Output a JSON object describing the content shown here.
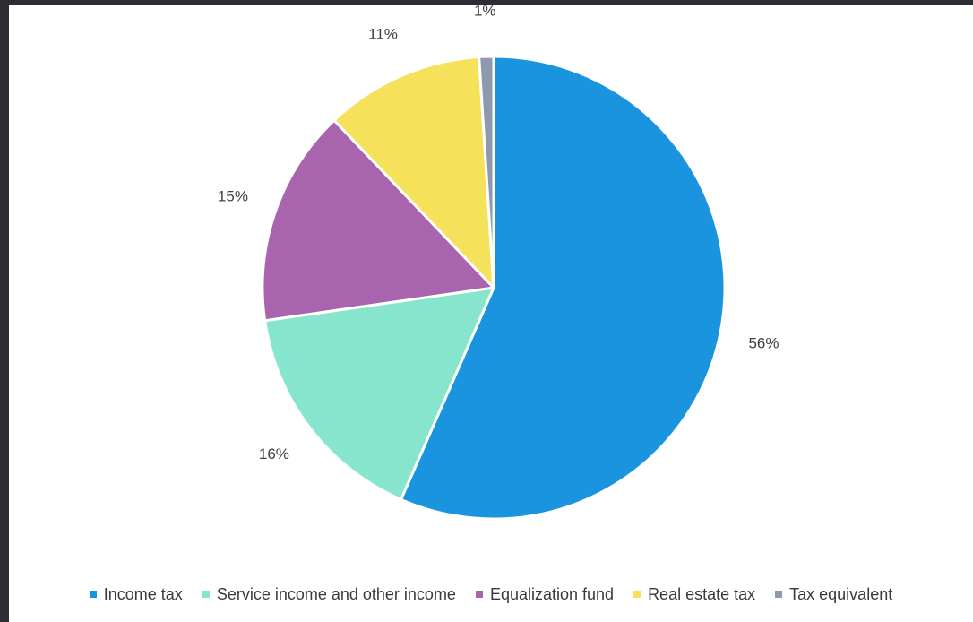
{
  "chart_data": {
    "type": "pie",
    "title": "",
    "start_angle_deg": 0,
    "direction": "clockwise",
    "legend_position": "bottom",
    "slices": [
      {
        "name": "Income tax",
        "value": 56,
        "label": "56%",
        "color": "#1a94df"
      },
      {
        "name": "Service income and other income",
        "value": 16,
        "label": "16%",
        "color": "#88e5cd"
      },
      {
        "name": "Equalization fund",
        "value": 15,
        "label": "15%",
        "color": "#a864ad"
      },
      {
        "name": "Real estate tax",
        "value": 11,
        "label": "11%",
        "color": "#f5e15a"
      },
      {
        "name": "Tax equivalent",
        "value": 1,
        "label": "1%",
        "color": "#8d9aae"
      }
    ]
  }
}
